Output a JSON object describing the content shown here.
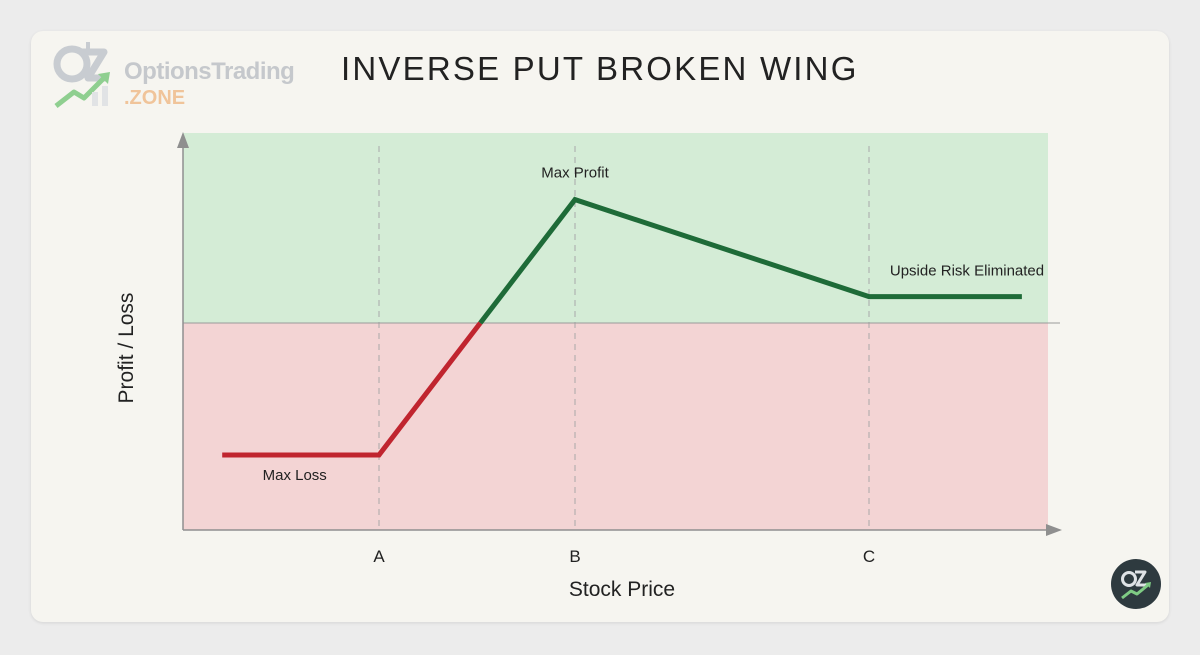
{
  "brand": {
    "name": "OptionsTrading",
    "suffix": ".ZONE",
    "monogram": "OZ"
  },
  "colors": {
    "profit_zone": "#d4ecd6",
    "loss_zone": "#f3d4d4",
    "profit_line": "#1e6b38",
    "loss_line": "#c0252f"
  },
  "chart_data": {
    "type": "line",
    "title": "INVERSE PUT BROKEN WING",
    "xlabel": "Stock Price",
    "ylabel": "Profit / Loss",
    "x_ticks": [
      {
        "label": "A",
        "x": 1
      },
      {
        "label": "B",
        "x": 2
      },
      {
        "label": "C",
        "x": 3.5
      }
    ],
    "xlim": [
      -0.2,
      4.2
    ],
    "ylim": [
      -3,
      3
    ],
    "breakeven_y": 0,
    "grid": "vertical dashed at A, B, C",
    "series": [
      {
        "points": [
          {
            "x": 0.2,
            "y": -2
          },
          {
            "x": 1,
            "y": -2
          },
          {
            "x": 2,
            "y": 1.87
          },
          {
            "x": 3.5,
            "y": 0.4
          },
          {
            "x": 4.28,
            "y": 0.4
          }
        ]
      }
    ],
    "annotations": [
      {
        "text": "Max Profit",
        "x": 2,
        "y": 1.87
      },
      {
        "text": "Upside Risk Eliminated",
        "x": 4.0,
        "y": 0.4
      },
      {
        "text": "Max Loss",
        "x": 0.57,
        "y": -2
      }
    ]
  }
}
